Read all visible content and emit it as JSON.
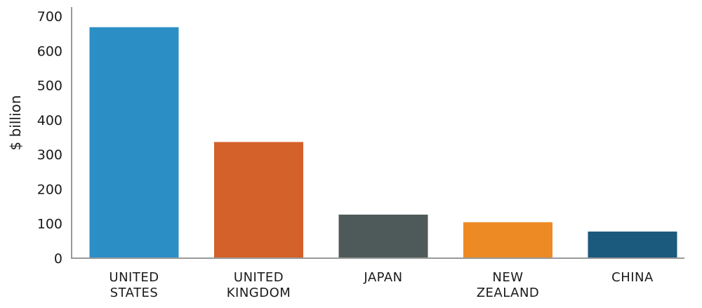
{
  "chart_data": {
    "type": "bar",
    "title": "",
    "xlabel": "",
    "ylabel": "$ billion",
    "ylim": [
      0,
      700
    ],
    "yticks": [
      0,
      100,
      200,
      300,
      400,
      500,
      600,
      700
    ],
    "grid": false,
    "legend": "none",
    "categories": [
      [
        "UNITED",
        "STATES"
      ],
      [
        "UNITED",
        "KINGDOM"
      ],
      [
        "JAPAN"
      ],
      [
        "NEW",
        "ZEALAND"
      ],
      [
        "CHINA"
      ]
    ],
    "values": [
      668,
      336,
      126,
      104,
      77
    ],
    "colors": [
      "#2b8fc6",
      "#d4602a",
      "#4e5a5a",
      "#ee8a24",
      "#1b597d"
    ],
    "axis_color": "#999999"
  }
}
